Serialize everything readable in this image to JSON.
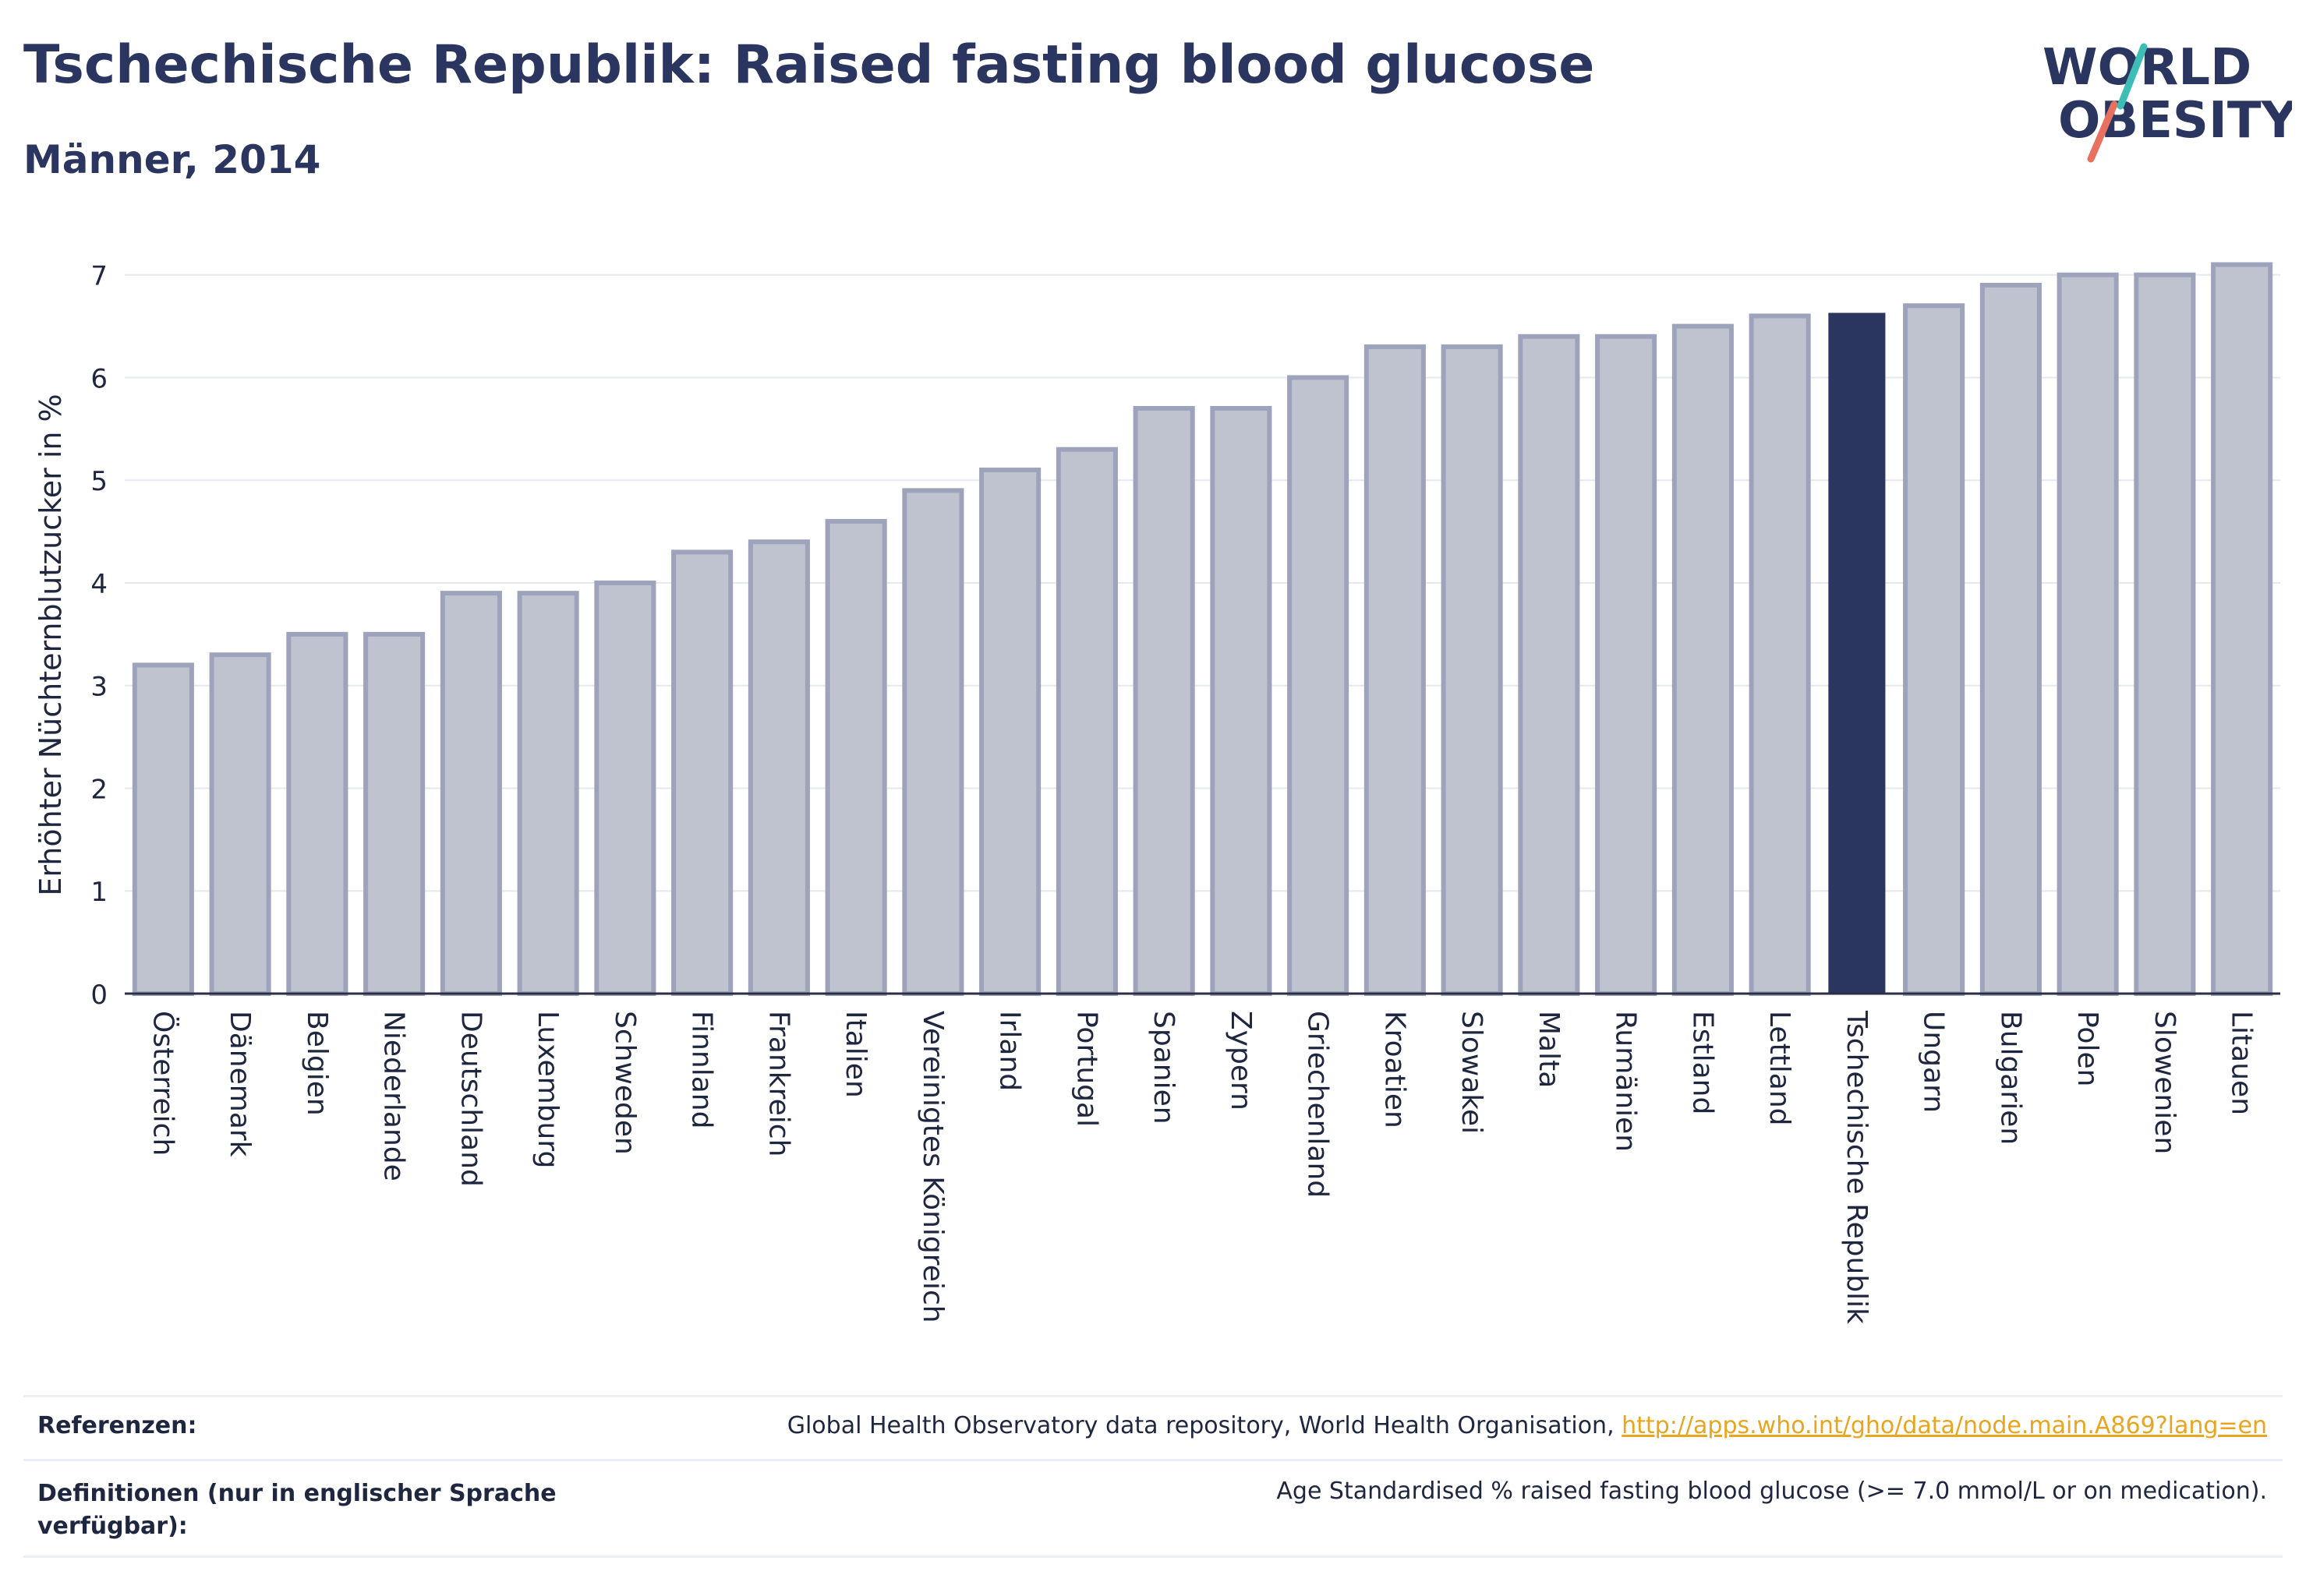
{
  "header": {
    "title": "Tschechische Republik: Raised fasting blood glucose",
    "subtitle": "Männer, 2014"
  },
  "logo": {
    "line1": "WORLD",
    "line2": "OBESITY"
  },
  "colors": {
    "bar_default": "#bfc3d0",
    "bar_default_stroke": "#9da3bb",
    "bar_highlight": "#2b3660",
    "text": "#2a3560",
    "grid": "#e6e8ef",
    "logo_teal": "#3dbdb5",
    "logo_coral": "#e8705f",
    "link": "#e8a520"
  },
  "chart_data": {
    "type": "bar",
    "title": "Tschechische Republik: Raised fasting blood glucose",
    "subtitle": "Männer, 2014",
    "ylabel": "Erhöhter Nüchternblutzucker in %",
    "xlabel": "",
    "ylim": [
      0,
      7.4
    ],
    "yticks": [
      0,
      1,
      2,
      3,
      4,
      5,
      6,
      7
    ],
    "grid": true,
    "highlight": "Tschechische Republik",
    "categories": [
      "Österreich",
      "Dänemark",
      "Belgien",
      "Niederlande",
      "Deutschland",
      "Luxemburg",
      "Schweden",
      "Finnland",
      "Frankreich",
      "Italien",
      "Vereinigtes Königreich",
      "Irland",
      "Portugal",
      "Spanien",
      "Zypern",
      "Griechenland",
      "Kroatien",
      "Slowakei",
      "Malta",
      "Rumänien",
      "Estland",
      "Lettland",
      "Tschechische Republik",
      "Ungarn",
      "Bulgarien",
      "Polen",
      "Slowenien",
      "Litauen"
    ],
    "values": [
      3.2,
      3.3,
      3.5,
      3.5,
      3.9,
      3.9,
      4.0,
      4.3,
      4.4,
      4.6,
      4.9,
      5.1,
      5.3,
      5.7,
      5.7,
      6.0,
      6.3,
      6.3,
      6.4,
      6.4,
      6.5,
      6.6,
      6.63,
      6.7,
      6.9,
      7.0,
      7.0,
      7.1
    ]
  },
  "footer": {
    "references_label": "Referenzen:",
    "references_text": "Global Health Observatory data repository, World Health Organisation, ",
    "references_link": "http://apps.who.int/gho/data/node.main.A869?lang=en",
    "definitions_label": "Definitionen (nur in englischer Sprache verfügbar):",
    "definitions_text": "Age Standardised % raised fasting blood glucose (>= 7.0 mmol/L or on medication)."
  }
}
